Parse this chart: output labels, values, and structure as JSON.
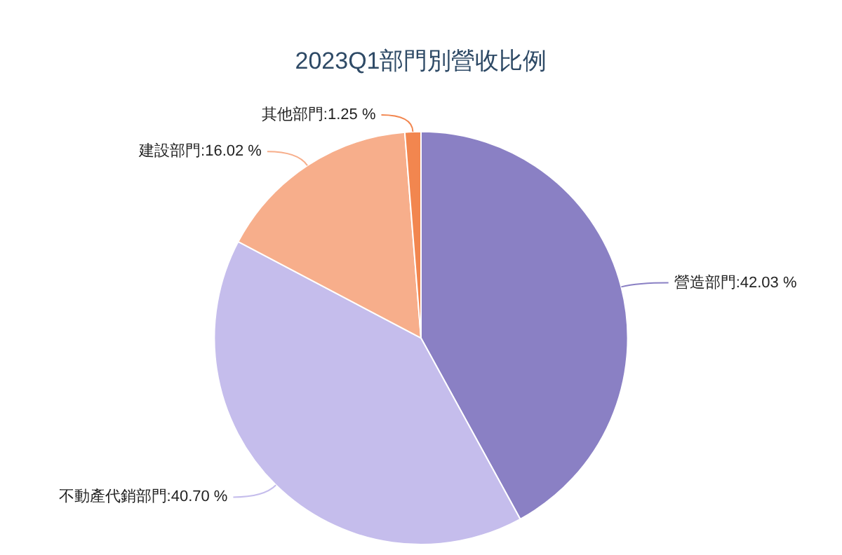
{
  "chart_data": {
    "type": "pie",
    "title": "2023Q1部門別營收比例",
    "categories": [
      "營造部門",
      "不動產代銷部門",
      "建設部門",
      "其他部門"
    ],
    "values": [
      42.03,
      40.7,
      16.02,
      1.25
    ],
    "value_labels": [
      "42.03 %",
      "40.70 %",
      "16.02 %",
      "1.25 %"
    ],
    "colors": [
      "#8a80c4",
      "#c5bdec",
      "#f7ae8b",
      "#f2864f"
    ],
    "legend": false
  }
}
